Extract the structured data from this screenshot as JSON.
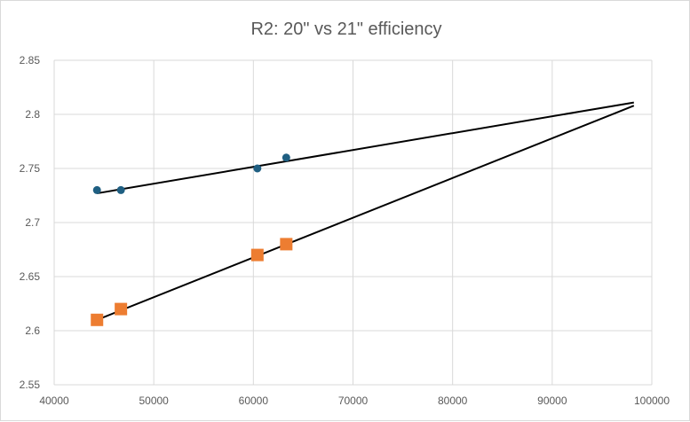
{
  "chart_data": {
    "type": "scatter",
    "title": "R2: 20\" vs 21\" efficiency",
    "xlabel": "",
    "ylabel": "",
    "xlim": [
      40000,
      100000
    ],
    "ylim": [
      2.55,
      2.85
    ],
    "x_ticks": [
      "40000",
      "50000",
      "60000",
      "70000",
      "80000",
      "90000",
      "100000"
    ],
    "y_ticks": [
      "2.55",
      "2.6",
      "2.65",
      "2.7",
      "2.75",
      "2.8",
      "2.85"
    ],
    "grid": true,
    "legend": "none",
    "series": [
      {
        "marker": "circle",
        "color": "#1f5f82",
        "points": [
          {
            "x": 44300,
            "y": 2.73
          },
          {
            "x": 46700,
            "y": 2.73
          },
          {
            "x": 60400,
            "y": 2.75
          },
          {
            "x": 63300,
            "y": 2.76
          }
        ],
        "trendline": {
          "x_start": 44300,
          "y_start": 2.727,
          "x_end": 98200,
          "y_end": 2.811
        }
      },
      {
        "marker": "square",
        "color": "#ed7d31",
        "points": [
          {
            "x": 44300,
            "y": 2.61
          },
          {
            "x": 46700,
            "y": 2.62
          },
          {
            "x": 60400,
            "y": 2.67
          },
          {
            "x": 63300,
            "y": 2.68
          }
        ],
        "trendline": {
          "x_start": 44300,
          "y_start": 2.61,
          "x_end": 98200,
          "y_end": 2.808
        }
      }
    ]
  }
}
